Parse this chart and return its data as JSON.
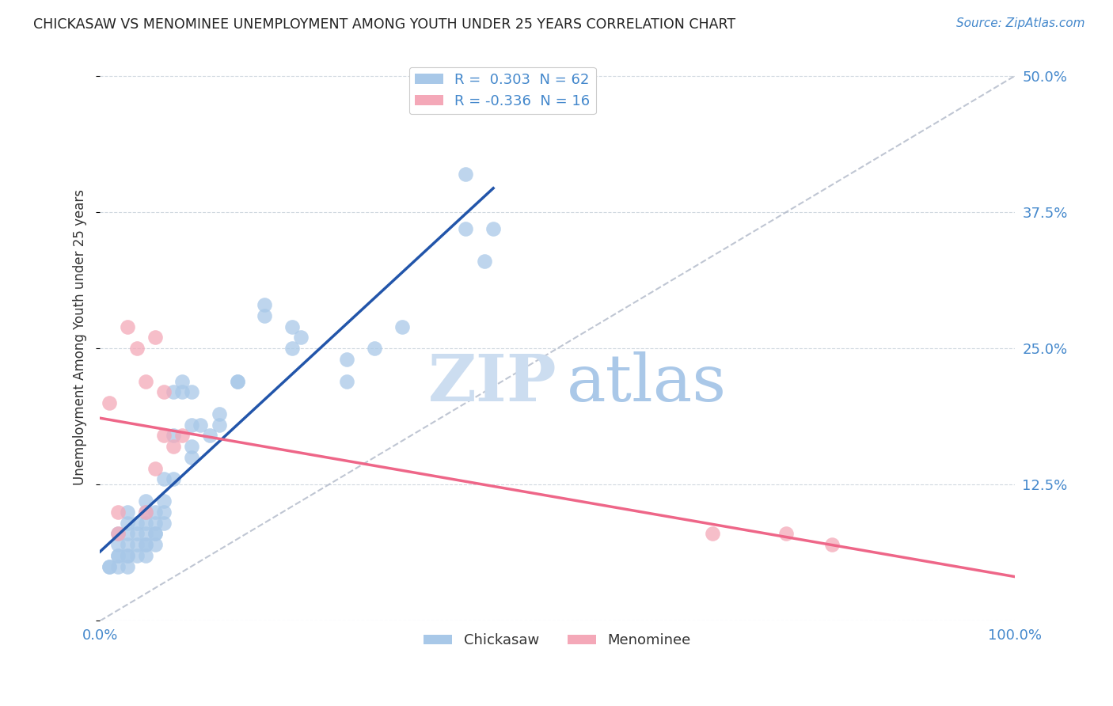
{
  "title": "CHICKASAW VS MENOMINEE UNEMPLOYMENT AMONG YOUTH UNDER 25 YEARS CORRELATION CHART",
  "source": "Source: ZipAtlas.com",
  "ylabel": "Unemployment Among Youth under 25 years",
  "xlim": [
    0,
    100
  ],
  "ylim": [
    0,
    52
  ],
  "yticks": [
    0,
    12.5,
    25,
    37.5,
    50
  ],
  "ytick_labels": [
    "",
    "12.5%",
    "25.0%",
    "37.5%",
    "50.0%"
  ],
  "xticks": [
    0,
    25,
    50,
    75,
    100
  ],
  "xtick_labels": [
    "0.0%",
    "",
    "",
    "",
    "100.0%"
  ],
  "chickasaw_R": 0.303,
  "chickasaw_N": 62,
  "menominee_R": -0.336,
  "menominee_N": 16,
  "chickasaw_color": "#a8c8e8",
  "menominee_color": "#f4a8b8",
  "chickasaw_line_color": "#2255aa",
  "menominee_line_color": "#ee6688",
  "diagonal_color": "#b0b8c8",
  "chickasaw_x": [
    1,
    1,
    2,
    2,
    2,
    2,
    2,
    3,
    3,
    3,
    3,
    3,
    3,
    3,
    4,
    4,
    4,
    4,
    5,
    5,
    5,
    5,
    5,
    5,
    5,
    6,
    6,
    6,
    6,
    6,
    7,
    7,
    7,
    7,
    8,
    8,
    8,
    9,
    9,
    10,
    10,
    10,
    10,
    11,
    12,
    13,
    13,
    15,
    15,
    18,
    18,
    21,
    21,
    22,
    27,
    27,
    30,
    33,
    40,
    40,
    42,
    43
  ],
  "chickasaw_y": [
    5,
    5,
    5,
    6,
    6,
    7,
    8,
    5,
    6,
    6,
    7,
    8,
    9,
    10,
    6,
    7,
    8,
    9,
    6,
    7,
    7,
    8,
    9,
    10,
    11,
    7,
    8,
    8,
    9,
    10,
    9,
    10,
    11,
    13,
    13,
    17,
    21,
    21,
    22,
    15,
    16,
    18,
    21,
    18,
    17,
    18,
    19,
    22,
    22,
    28,
    29,
    25,
    27,
    26,
    22,
    24,
    25,
    27,
    36,
    41,
    33,
    36
  ],
  "menominee_x": [
    1,
    2,
    2,
    3,
    4,
    5,
    5,
    6,
    6,
    7,
    7,
    8,
    9,
    67,
    75,
    80
  ],
  "menominee_y": [
    20,
    8,
    10,
    27,
    25,
    10,
    22,
    14,
    26,
    17,
    21,
    16,
    17,
    8,
    8,
    7
  ],
  "watermark_zip_color": "#ccddf0",
  "watermark_atlas_color": "#aac8e8"
}
